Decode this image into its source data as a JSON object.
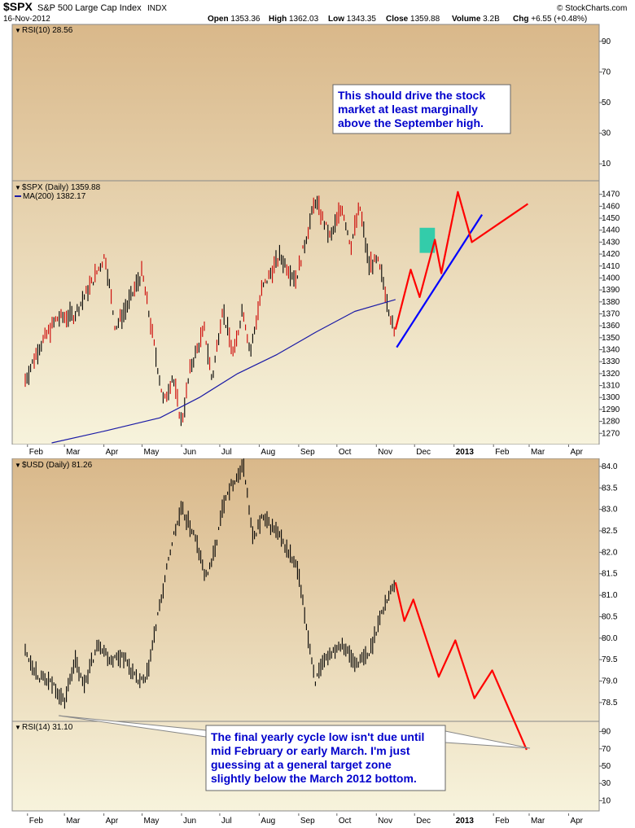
{
  "header": {
    "symbol": "$SPX",
    "name": "S&P 500 Large Cap Index",
    "exchange": "INDX",
    "date": "16-Nov-2012",
    "open_label": "Open",
    "open": "1353.36",
    "high_label": "High",
    "high": "1362.03",
    "low_label": "Low",
    "low": "1343.35",
    "close_label": "Close",
    "close": "1359.88",
    "volume_label": "Volume",
    "volume": "3.2B",
    "chg_label": "Chg",
    "chg": "+6.55 (+0.48%)",
    "watermark": "© StockCharts.com"
  },
  "colors": {
    "panel_top": "#d9b88a",
    "panel_bottom": "#f7f3dc",
    "price_up": "#000000",
    "price_down": "#cc0000",
    "ma_line": "#1a1aa6",
    "projection": "#ff0000",
    "trendline": "#0000ff",
    "target_zone": "#33ccaa",
    "note_text": "#0000cc"
  },
  "months": [
    "Feb",
    "Mar",
    "Apr",
    "May",
    "Jun",
    "Jul",
    "Aug",
    "Sep",
    "Oct",
    "Nov",
    "Dec",
    "2013",
    "Feb",
    "Mar",
    "Apr"
  ],
  "notes": {
    "top": [
      "This should drive the stock",
      "market at least marginally",
      "above the September high."
    ],
    "bottom": [
      "The final yearly cycle low isn't due until",
      "mid February or early March. I'm just",
      "guessing at a general target zone",
      "slightly below the March 2012 bottom."
    ]
  },
  "chart_data": [
    {
      "type": "line",
      "panel": "rsi-spx",
      "legend": "RSI(10) 28.56",
      "ylim": [
        0,
        100
      ],
      "ticks": [
        10,
        30,
        50,
        70,
        90
      ],
      "grid": false
    },
    {
      "type": "line",
      "panel": "spx",
      "legend": [
        "$SPX (Daily) 1359.88",
        "MA(200) 1382.17"
      ],
      "ylim": [
        1262,
        1480
      ],
      "ticks": [
        1270,
        1280,
        1290,
        1300,
        1310,
        1320,
        1330,
        1340,
        1350,
        1360,
        1370,
        1380,
        1390,
        1400,
        1410,
        1420,
        1430,
        1440,
        1450,
        1460,
        1470
      ],
      "series": [
        {
          "name": "$SPX (Daily)",
          "x": [
            "2012-01-30",
            "2012-02-10",
            "2012-02-24",
            "2012-03-09",
            "2012-03-23",
            "2012-04-02",
            "2012-04-10",
            "2012-04-20",
            "2012-05-01",
            "2012-05-18",
            "2012-05-25",
            "2012-06-01",
            "2012-06-08",
            "2012-06-19",
            "2012-06-25",
            "2012-07-03",
            "2012-07-12",
            "2012-07-19",
            "2012-07-25",
            "2012-08-03",
            "2012-08-17",
            "2012-08-30",
            "2012-09-14",
            "2012-09-26",
            "2012-10-05",
            "2012-10-12",
            "2012-10-19",
            "2012-10-26",
            "2012-11-02",
            "2012-11-07",
            "2012-11-15",
            "2012-11-16"
          ],
          "values": [
            1314,
            1342,
            1366,
            1369,
            1397,
            1419,
            1358,
            1378,
            1405,
            1295,
            1318,
            1278,
            1325,
            1357,
            1314,
            1374,
            1335,
            1376,
            1337,
            1390,
            1418,
            1399,
            1465,
            1433,
            1460,
            1427,
            1460,
            1411,
            1414,
            1394,
            1353,
            1360
          ]
        },
        {
          "name": "MA(200)",
          "x": [
            "2012-02-20",
            "2012-04-02",
            "2012-05-15",
            "2012-06-15",
            "2012-07-15",
            "2012-08-15",
            "2012-09-15",
            "2012-10-15",
            "2012-11-16"
          ],
          "values": [
            1262,
            1272,
            1283,
            1300,
            1320,
            1336,
            1355,
            1372,
            1382
          ]
        },
        {
          "name": "Projection",
          "x": [
            "2012-11-16",
            "2012-11-28",
            "2012-12-05",
            "2012-12-17",
            "2012-12-22",
            "2013-01-04",
            "2013-01-15",
            "2013-02-28"
          ],
          "values": [
            1357,
            1407,
            1384,
            1432,
            1404,
            1472,
            1430,
            1462
          ]
        },
        {
          "name": "Trendline",
          "x": [
            "2012-11-17",
            "2013-01-23"
          ],
          "values": [
            1342,
            1453
          ]
        }
      ],
      "target_zone": {
        "x": [
          "2012-12-05",
          "2012-12-17"
        ],
        "y": [
          1421,
          1442
        ]
      }
    },
    {
      "type": "line",
      "panel": "usd",
      "legend": "$USD (Daily) 81.26",
      "ylim": [
        78.1,
        84.15
      ],
      "ticks": [
        78.5,
        79.0,
        79.5,
        80.0,
        80.5,
        81.0,
        81.5,
        82.0,
        82.5,
        83.0,
        83.5,
        84.0
      ],
      "series": [
        {
          "name": "$USD (Daily)",
          "x": [
            "2012-01-30",
            "2012-02-10",
            "2012-02-22",
            "2012-03-01",
            "2012-03-09",
            "2012-03-16",
            "2012-03-28",
            "2012-04-06",
            "2012-04-16",
            "2012-04-27",
            "2012-05-04",
            "2012-05-14",
            "2012-05-25",
            "2012-06-01",
            "2012-06-11",
            "2012-06-20",
            "2012-06-27",
            "2012-07-05",
            "2012-07-13",
            "2012-07-20",
            "2012-07-27",
            "2012-08-03",
            "2012-08-14",
            "2012-08-24",
            "2012-08-31",
            "2012-09-07",
            "2012-09-14",
            "2012-09-24",
            "2012-10-05",
            "2012-10-15",
            "2012-10-26",
            "2012-11-02",
            "2012-11-09",
            "2012-11-16"
          ],
          "values": [
            79.7,
            79.1,
            78.9,
            78.5,
            79.5,
            78.9,
            79.9,
            79.5,
            79.6,
            79.0,
            79.0,
            80.6,
            82.3,
            83.0,
            82.4,
            81.4,
            82.0,
            83.3,
            83.7,
            84.0,
            82.3,
            82.8,
            82.5,
            82.0,
            81.6,
            80.3,
            79.0,
            79.6,
            79.9,
            79.4,
            79.6,
            80.3,
            80.9,
            81.3
          ]
        },
        {
          "name": "Projection",
          "x": [
            "2012-11-16",
            "2012-11-23",
            "2012-11-30",
            "2012-12-20",
            "2013-01-02",
            "2013-01-17",
            "2013-01-31",
            "2013-02-27"
          ],
          "values": [
            81.3,
            80.4,
            80.9,
            79.1,
            79.95,
            78.6,
            79.25,
            77.4
          ]
        }
      ]
    },
    {
      "type": "line",
      "panel": "rsi-usd",
      "legend": "RSI(14) 31.10",
      "ylim": [
        0,
        100
      ],
      "ticks": [
        10,
        30,
        50,
        70,
        90
      ]
    }
  ]
}
